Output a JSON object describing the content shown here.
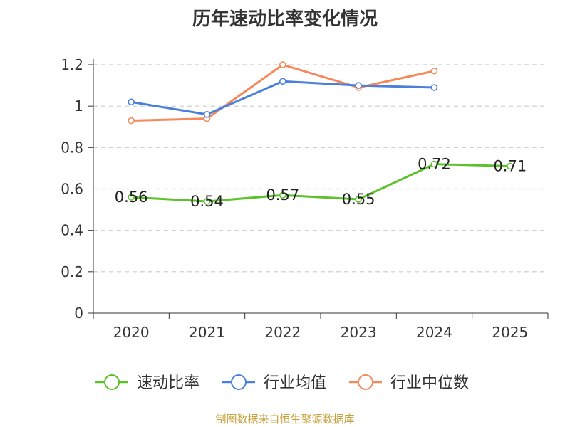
{
  "chart_data": {
    "type": "line",
    "title": "历年速动比率变化情况",
    "categories": [
      "2020",
      "2021",
      "2022",
      "2023",
      "2024",
      "2025"
    ],
    "ylim": [
      0,
      1.2
    ],
    "yticks": [
      "0",
      "0.2",
      "0.4",
      "0.6",
      "0.8",
      "1",
      "1.2"
    ],
    "grid": true,
    "legend_position": "bottom",
    "series": [
      {
        "name": "速动比率",
        "color": "#5cc22c",
        "values": [
          0.56,
          0.54,
          0.57,
          0.55,
          0.72,
          0.71
        ],
        "labels": [
          "0.56",
          "0.54",
          "0.57",
          "0.55",
          "0.72",
          "0.71"
        ]
      },
      {
        "name": "行业均值",
        "color": "#4a80db",
        "values": [
          1.02,
          0.96,
          1.12,
          1.1,
          1.09,
          null
        ]
      },
      {
        "name": "行业中位数",
        "color": "#f6885a",
        "values": [
          0.93,
          0.94,
          1.2,
          1.09,
          1.17,
          null
        ]
      }
    ]
  },
  "source": "制图数据来自恒生聚源数据库"
}
